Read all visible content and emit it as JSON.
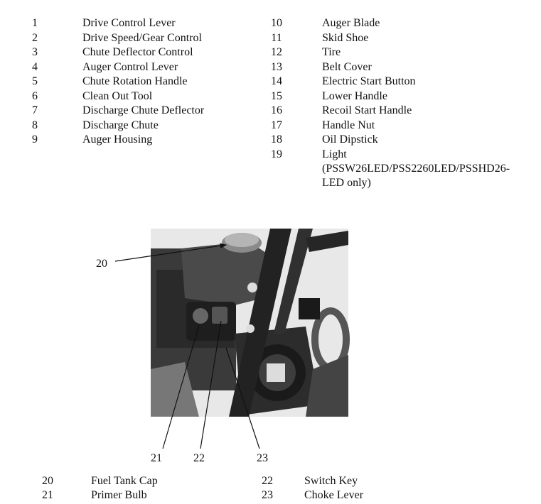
{
  "parts_list": {
    "left": [
      {
        "number": 1,
        "name": "Drive Control Lever"
      },
      {
        "number": 2,
        "name": "Drive Speed/Gear Control"
      },
      {
        "number": 3,
        "name": "Chute Deflector Control"
      },
      {
        "number": 4,
        "name": "Auger Control Lever"
      },
      {
        "number": 5,
        "name": "Chute Rotation Handle"
      },
      {
        "number": 6,
        "name": "Clean Out Tool"
      },
      {
        "number": 7,
        "name": "Discharge Chute Deflector"
      },
      {
        "number": 8,
        "name": "Discharge Chute"
      },
      {
        "number": 9,
        "name": "Auger Housing"
      }
    ],
    "right": [
      {
        "number": 10,
        "name": "Auger Blade"
      },
      {
        "number": 11,
        "name": "Skid Shoe"
      },
      {
        "number": 12,
        "name": "Tire"
      },
      {
        "number": 13,
        "name": "Belt Cover"
      },
      {
        "number": 14,
        "name": "Electric Start Button"
      },
      {
        "number": 15,
        "name": "Lower Handle"
      },
      {
        "number": 16,
        "name": "Recoil Start Handle"
      },
      {
        "number": 17,
        "name": "Handle Nut"
      },
      {
        "number": 18,
        "name": "Oil Dipstick"
      },
      {
        "number": 19,
        "name": "Light (PSSW26LED/PSS2260LED/PSSHD26-LED only)"
      }
    ]
  },
  "photo_callouts": [
    20,
    21,
    22,
    23
  ],
  "engine_parts": [
    {
      "number": 20,
      "name": "Fuel Tank Cap"
    },
    {
      "number": 21,
      "name": "Primer Bulb"
    },
    {
      "number": 22,
      "name": "Switch Key"
    },
    {
      "number": 23,
      "name": "Choke Lever"
    }
  ]
}
